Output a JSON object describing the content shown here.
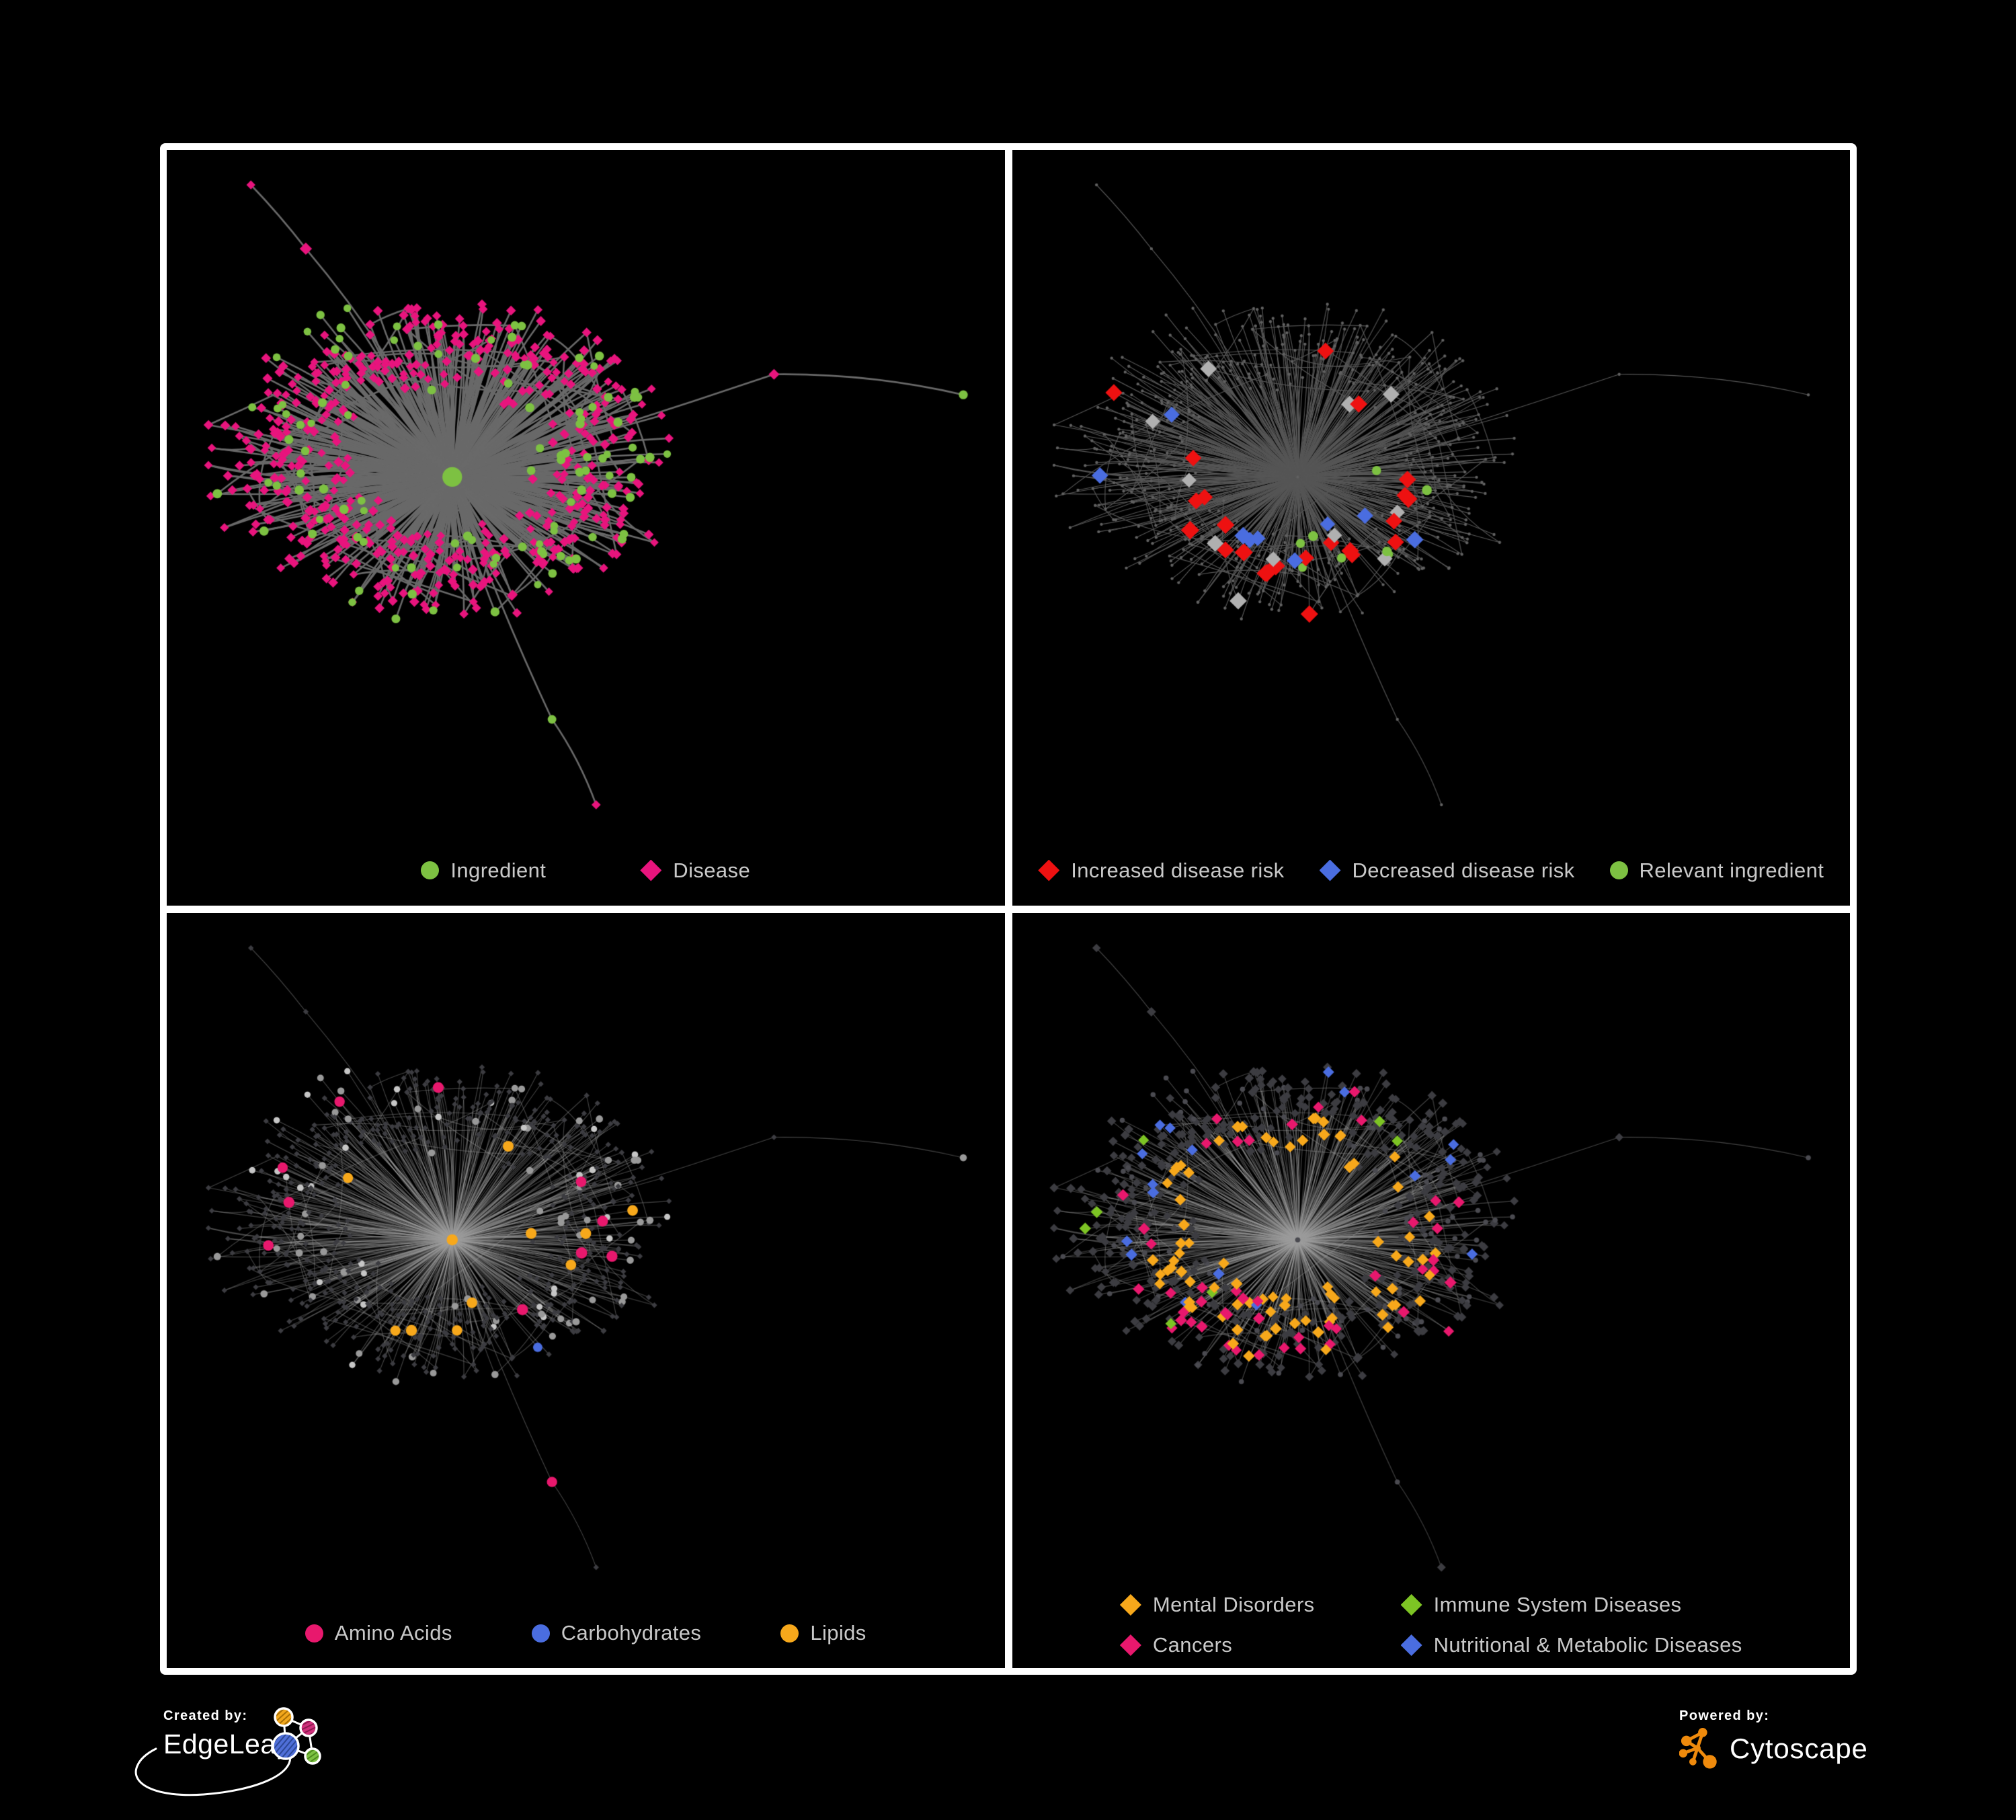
{
  "figure": {
    "background": "#000000",
    "frame_color": "#ffffff"
  },
  "panels": [
    {
      "name": "ingredient-disease-network",
      "legend": [
        {
          "label": "Ingredient",
          "marker": "circle",
          "color": "#7dc142"
        },
        {
          "label": "Disease",
          "marker": "diamond",
          "color": "#e8147d"
        }
      ]
    },
    {
      "name": "disease-risk-network",
      "legend": [
        {
          "label": "Increased disease risk",
          "marker": "diamond",
          "color": "#ee1111"
        },
        {
          "label": "Decreased disease risk",
          "marker": "diamond",
          "color": "#4a6de0"
        },
        {
          "label": "Relevant ingredient",
          "marker": "circle",
          "color": "#7dc142"
        }
      ]
    },
    {
      "name": "nutrient-class-network",
      "legend": [
        {
          "label": "Amino Acids",
          "marker": "circle",
          "color": "#e8186d"
        },
        {
          "label": "Carbohydrates",
          "marker": "circle",
          "color": "#4a6de0"
        },
        {
          "label": "Lipids",
          "marker": "circle",
          "color": "#f7a81b"
        }
      ]
    },
    {
      "name": "disease-class-network",
      "legend_columns": 2,
      "legend": [
        {
          "label": "Mental Disorders",
          "marker": "diamond",
          "color": "#f7a81b"
        },
        {
          "label": "Cancers",
          "marker": "diamond",
          "color": "#e8186d"
        },
        {
          "label": "Immune System Diseases",
          "marker": "diamond",
          "color": "#7dc424"
        },
        {
          "label": "Nutritional & Metabolic Diseases",
          "marker": "diamond",
          "color": "#4a6de0"
        }
      ]
    }
  ],
  "branding": {
    "created_by_label": "Created by:",
    "created_by_name": "EdgeLeap",
    "powered_by_label": "Powered by:",
    "powered_by_name": "Cytoscape",
    "edgeleap_logo_colors": {
      "orange": "#f2a71c",
      "pink": "#cf2f7b",
      "blue": "#4f6fd8",
      "green": "#7dc242"
    },
    "cytoscape_orange": "#ef8a0c"
  },
  "network_colors": {
    "ingredient_green": "#7dc142",
    "disease_pink": "#e8147d",
    "risk_red": "#ee1111",
    "risk_blue": "#4a6de0",
    "neutral_gray": "#b0b0b0",
    "relevant_green": "#7dc142",
    "amino_pink": "#e8186d",
    "carb_blue": "#4a6de0",
    "lipid_orange": "#f7a81b",
    "mental_orange": "#f7a81b",
    "immune_green": "#7dc424",
    "cancer_pink": "#e8186d",
    "nutritional_blue": "#4a6de0",
    "node_gray": "#999999",
    "node_gray_light": "#c6c6c6",
    "dark_diamond": "#3c3c41",
    "dark_circle": "#4a4a50",
    "tiny_gray": "#606060",
    "edge_dark": "#696969",
    "edge_light": "#565656",
    "edge_faint": "rgba(158,158,158,0.42)"
  }
}
